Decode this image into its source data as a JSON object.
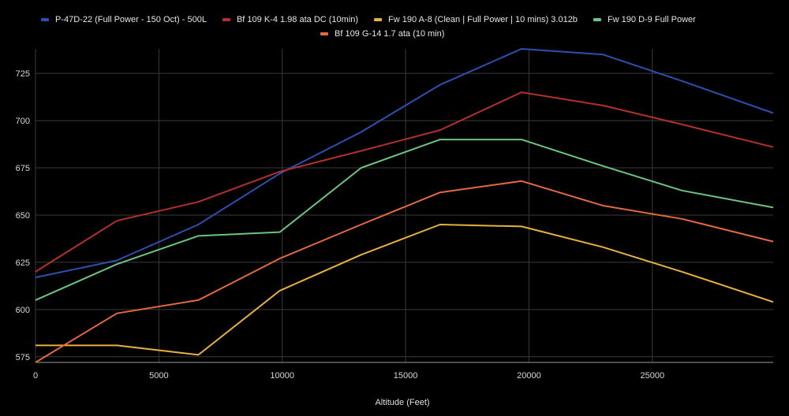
{
  "chart_data": {
    "type": "line",
    "title": "",
    "xlabel": "Altitude (Feet)",
    "ylabel": "",
    "xlim": [
      0,
      29900
    ],
    "ylim": [
      572,
      738
    ],
    "grid": true,
    "legend_position": "top",
    "x_ticks": [
      0,
      5000,
      10000,
      15000,
      20000,
      25000
    ],
    "x_tick_labels": [
      "0",
      "5000",
      "10000",
      "15000",
      "20000",
      "25000"
    ],
    "y_ticks": [
      575,
      600,
      625,
      650,
      675,
      700,
      725
    ],
    "y_tick_labels": [
      "575",
      "600",
      "625",
      "650",
      "675",
      "700",
      "725"
    ],
    "series": [
      {
        "name": "P-47D-22 (Full Power - 150 Oct) - 500L",
        "color": "#2f4fb0",
        "x": [
          0,
          3300,
          6600,
          9900,
          13200,
          16400,
          19700,
          23000,
          26200,
          29900
        ],
        "y": [
          617,
          626,
          645,
          672,
          694,
          719,
          738,
          735,
          721,
          704
        ]
      },
      {
        "name": "Bf 109 K-4 1.98 ata DC (10min)",
        "color": "#b3302d",
        "x": [
          0,
          3300,
          6600,
          9900,
          13200,
          16400,
          19700,
          23000,
          26200,
          29900
        ],
        "y": [
          620,
          647,
          657,
          673,
          684,
          695,
          715,
          708,
          698,
          686
        ]
      },
      {
        "name": "Fw 190 A-8 (Clean | Full Power | 10 mins) 3.012b",
        "color": "#e8b13e",
        "x": [
          0,
          3300,
          6600,
          9900,
          13200,
          16400,
          19700,
          23000,
          26200,
          29900
        ],
        "y": [
          581,
          581,
          576,
          610,
          629,
          645,
          644,
          633,
          620,
          604
        ]
      },
      {
        "name": "Fw 190 D-9 Full Power",
        "color": "#6cc483",
        "x": [
          0,
          3300,
          6600,
          9900,
          13200,
          16400,
          19700,
          23000,
          26200,
          29900
        ],
        "y": [
          605,
          624,
          639,
          641,
          675,
          690,
          690,
          676,
          663,
          654
        ]
      },
      {
        "name": "Bf 109 G-14 1.7 ata (10 min)",
        "color": "#e36a3e",
        "x": [
          0,
          3300,
          6600,
          9900,
          13200,
          16400,
          19700,
          23000,
          26200,
          29900
        ],
        "y": [
          572,
          598,
          605,
          627,
          645,
          662,
          668,
          655,
          648,
          636
        ]
      }
    ]
  }
}
